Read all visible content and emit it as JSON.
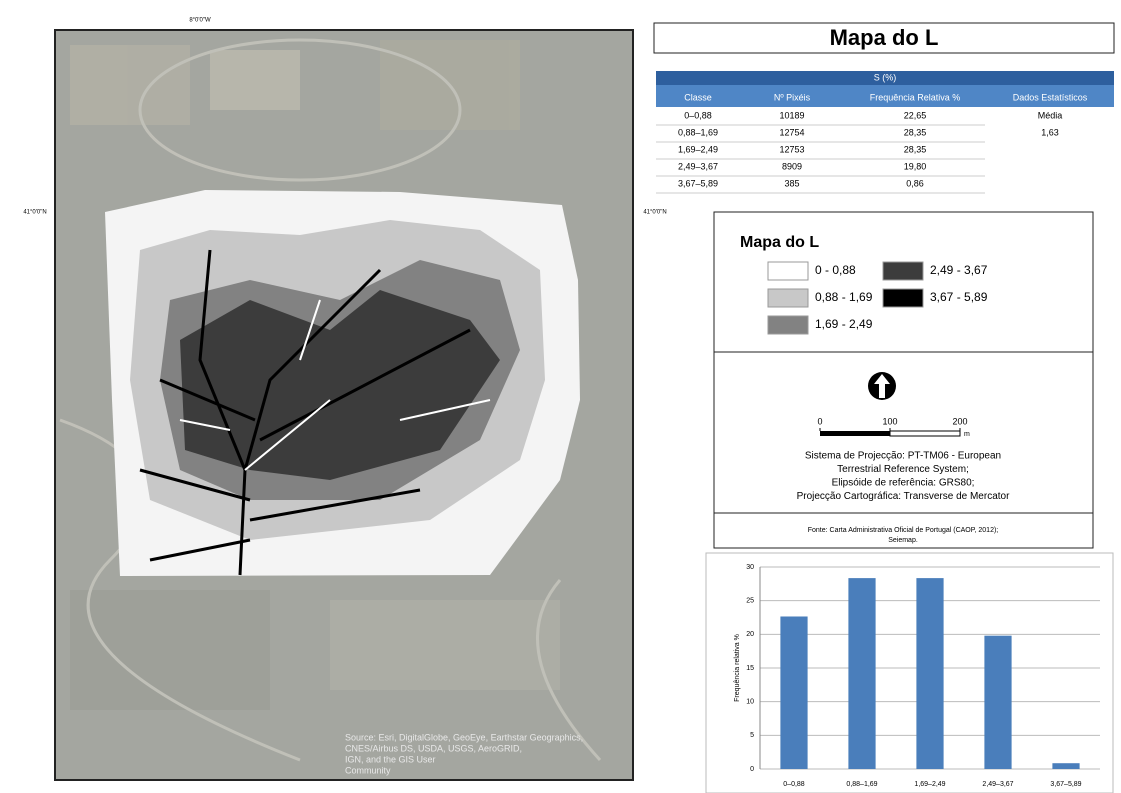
{
  "title": "Mapa do L",
  "map": {
    "coord_top": "8°0'0\"W",
    "coord_left": "41°0'0\"N",
    "coord_right": "41°0'0\"N",
    "attribution": [
      "Source: Esri, DigitalGlobe, GeoEye, Earthstar Geographics,",
      "CNES/Airbus DS, USDA, USGS, AeroGRID,",
      "IGN, and the GIS User",
      "Community"
    ]
  },
  "table": {
    "caption": "S (%)",
    "columns": [
      "Classe",
      "Nº Pixéis",
      "Frequência Relativa %",
      "Dados Estatísticos"
    ],
    "rows": [
      [
        "0–0,88",
        "10189",
        "22,65"
      ],
      [
        "0,88–1,69",
        "12754",
        "28,35"
      ],
      [
        "1,69–2,49",
        "12753",
        "28,35"
      ],
      [
        "2,49–3,67",
        "8909",
        "19,80"
      ],
      [
        "3,67–5,89",
        "385",
        "0,86"
      ]
    ],
    "stats": [
      "Média",
      "1,63"
    ]
  },
  "legend": {
    "title": "Mapa do L",
    "items": [
      {
        "label": "0 - 0,88",
        "color": "#ffffff"
      },
      {
        "label": "0,88 - 1,69",
        "color": "#c8c8c8"
      },
      {
        "label": "1,69 - 2,49",
        "color": "#828282"
      },
      {
        "label": "2,49 - 3,67",
        "color": "#3c3c3c"
      },
      {
        "label": "3,67 - 5,89",
        "color": "#000000"
      }
    ]
  },
  "scale": {
    "ticks": [
      0,
      100,
      200
    ],
    "unit": "m"
  },
  "projection": [
    "Sistema de Projecção: PT-TM06 - European",
    "Terrestrial Reference System;",
    "Elipsóide de referência: GRS80;",
    "Projecção Cartográfica: Transverse de Mercator"
  ],
  "source": [
    "Fonte: Carta Administrativa Oficial de Portugal (CAOP, 2012);",
    "Seiemap."
  ],
  "chart_data": {
    "type": "bar",
    "categories": [
      "0–0,88",
      "0,88–1,69",
      "1,69–2,49",
      "2,49–3,67",
      "3,67–5,89"
    ],
    "values": [
      22.65,
      28.35,
      28.35,
      19.8,
      0.86
    ],
    "color": "#4a7ebb",
    "ylabel": "Frequência relativa %",
    "ylim": [
      0,
      30
    ],
    "yticks": [
      0,
      5,
      10,
      15,
      20,
      25,
      30
    ],
    "grid": true
  }
}
